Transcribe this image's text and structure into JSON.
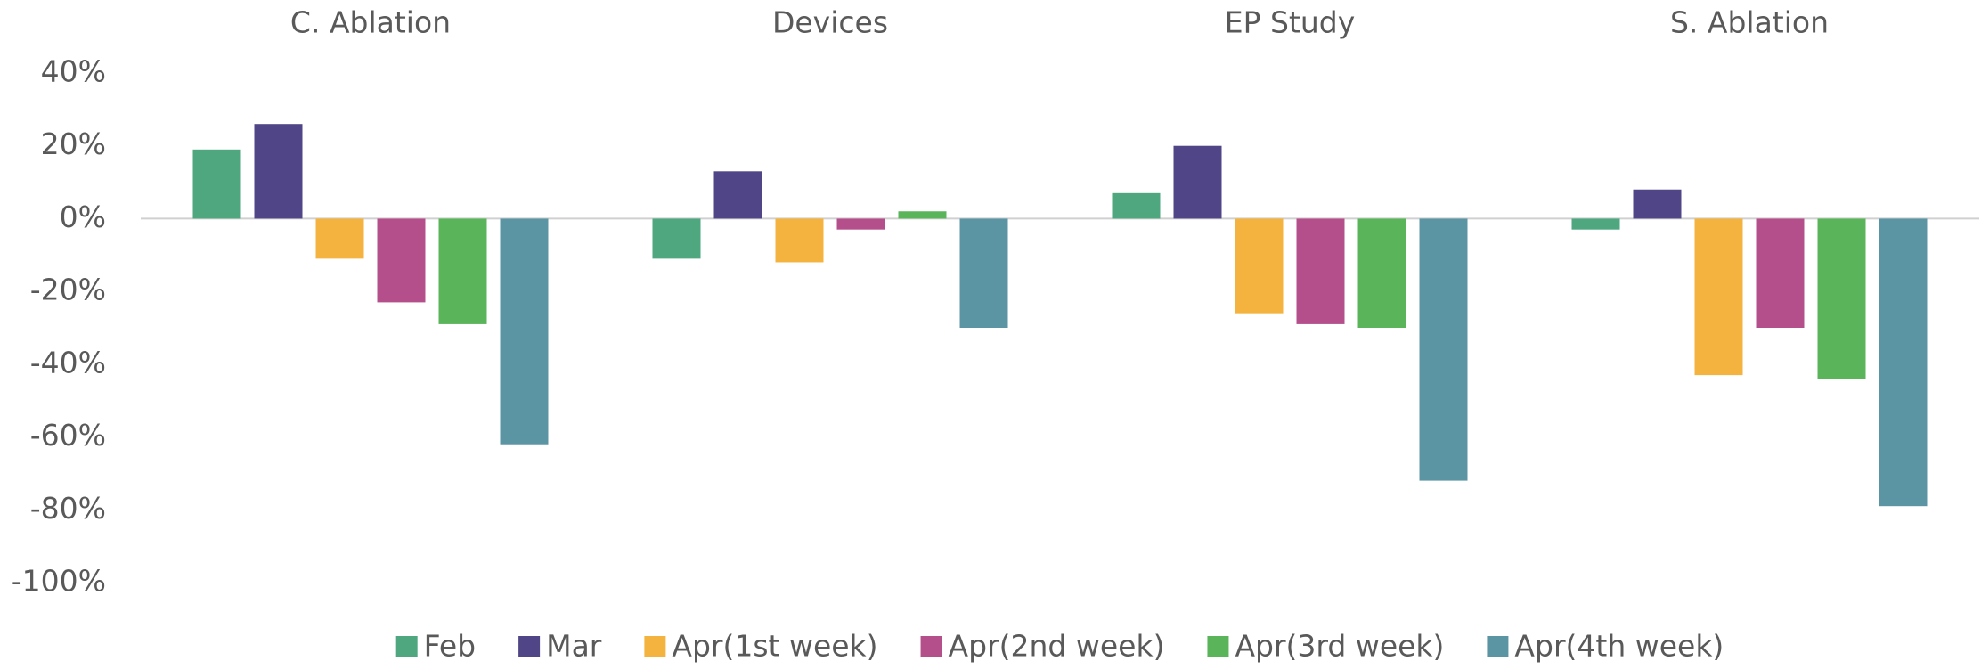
{
  "chart_data": {
    "type": "bar",
    "categories": [
      "C. Ablation",
      "Devices",
      "EP Study",
      "S. Ablation"
    ],
    "series": [
      {
        "name": "Feb",
        "color": "#4ea77f",
        "values": [
          19,
          -11,
          7,
          -3
        ]
      },
      {
        "name": "Mar",
        "color": "#4f4587",
        "values": [
          26,
          13,
          20,
          8
        ]
      },
      {
        "name": "Apr(1st week)",
        "color": "#f4b33e",
        "values": [
          -11,
          -12,
          -26,
          -43
        ]
      },
      {
        "name": "Apr(2nd week)",
        "color": "#b54f8c",
        "values": [
          -23,
          -3,
          -29,
          -30
        ]
      },
      {
        "name": "Apr(3rd week)",
        "color": "#5ab45a",
        "values": [
          -29,
          2,
          -30,
          -44
        ]
      },
      {
        "name": "Apr(4th week)",
        "color": "#5b95a4",
        "values": [
          -62,
          -30,
          -72,
          -79
        ]
      }
    ],
    "ylim": [
      -100,
      40
    ],
    "yticks": [
      {
        "value": 40,
        "label": "40%"
      },
      {
        "value": 20,
        "label": "20%"
      },
      {
        "value": 0,
        "label": "0%"
      },
      {
        "value": -20,
        "label": "-20%"
      },
      {
        "value": -40,
        "label": "-40%"
      },
      {
        "value": -60,
        "label": "-60%"
      },
      {
        "value": -80,
        "label": "-80%"
      },
      {
        "value": -100,
        "label": "-100%"
      }
    ],
    "legend": "bottom"
  }
}
